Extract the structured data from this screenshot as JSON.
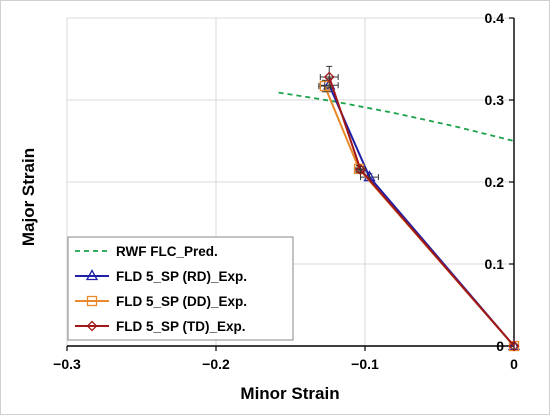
{
  "chart_data": {
    "type": "line",
    "title": "",
    "xlabel": "Minor Strain",
    "ylabel": "Major Strain",
    "xlim": [
      -0.3,
      0
    ],
    "ylim": [
      0,
      0.4
    ],
    "x_ticks": [
      -0.3,
      -0.2,
      -0.1,
      0
    ],
    "x_tick_labels": [
      "−0.3",
      "−0.2",
      "−0.1",
      "0"
    ],
    "y_ticks": [
      0,
      0.1,
      0.2,
      0.3,
      0.4
    ],
    "y_tick_labels": [
      "0",
      "0.1",
      "0.2",
      "0.3",
      "0.4"
    ],
    "y_axis_position": "right",
    "grid": true,
    "legend_position": "bottom-left",
    "series": [
      {
        "name": "RWF FLC_Pred.",
        "color": "#1aa34a",
        "style": "dashed",
        "marker": "none",
        "x": [
          -0.158,
          -0.14,
          -0.12,
          -0.1,
          -0.08,
          -0.06,
          -0.04,
          -0.02,
          0
        ],
        "y": [
          0.309,
          0.304,
          0.298,
          0.291,
          0.284,
          0.276,
          0.268,
          0.259,
          0.25
        ]
      },
      {
        "name": "FLD 5_SP (RD)_Exp.",
        "color": "#1f1fa8",
        "style": "solid",
        "marker": "triangle",
        "x": [
          -0.124,
          -0.097,
          0
        ],
        "y": [
          0.318,
          0.206,
          0
        ],
        "x_err": [
          0.006,
          0.006,
          0
        ],
        "y_err": [
          0.008,
          0.004,
          0
        ]
      },
      {
        "name": "FLD 5_SP (DD)_Exp.",
        "color": "#e8892a",
        "style": "solid",
        "marker": "square",
        "x": [
          -0.127,
          -0.104,
          0
        ],
        "y": [
          0.317,
          0.216,
          0
        ],
        "x_err": [
          0.004,
          0.003,
          0
        ],
        "y_err": [
          0.007,
          0.004,
          0
        ]
      },
      {
        "name": "FLD 5_SP (TD)_Exp.",
        "color": "#a01818",
        "style": "solid",
        "marker": "diamond",
        "x": [
          -0.124,
          -0.103,
          0
        ],
        "y": [
          0.328,
          0.215,
          0
        ],
        "x_err": [
          0.006,
          0.003,
          0
        ],
        "y_err": [
          0.013,
          0.004,
          0
        ]
      }
    ]
  }
}
